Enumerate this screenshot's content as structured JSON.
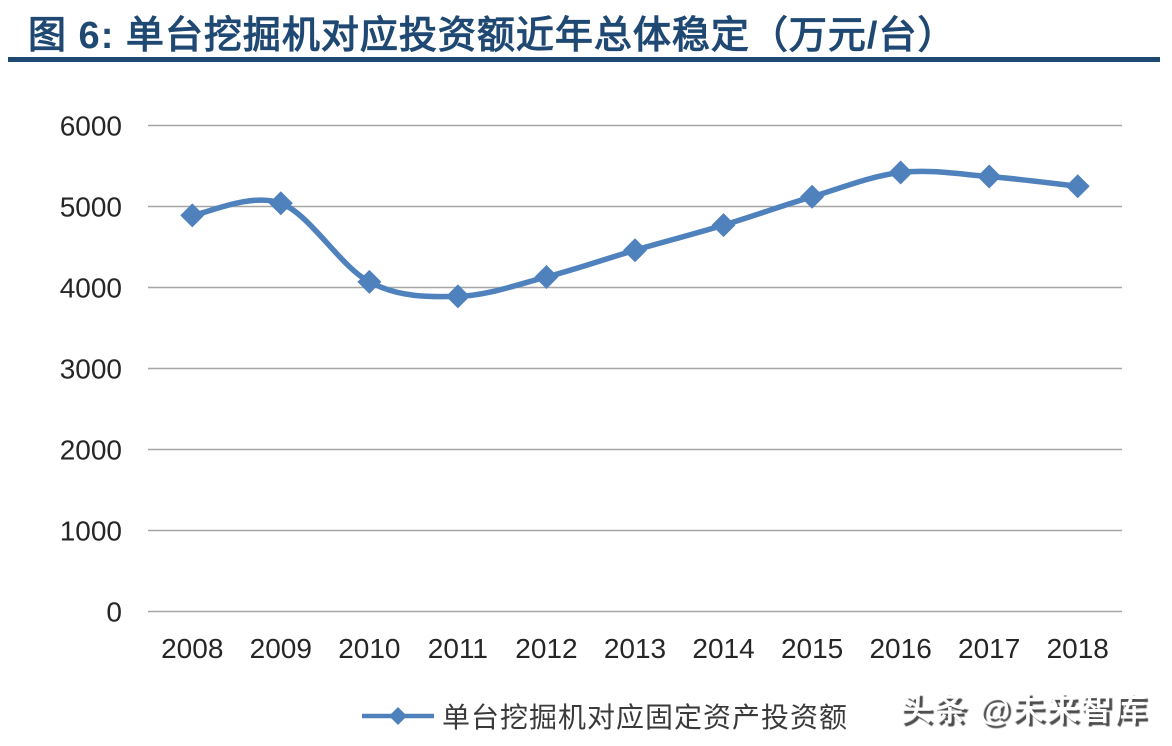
{
  "header": {
    "title": "图 6: 单台挖掘机对应投资额近年总体稳定（万元/台）",
    "accent_color": "#1f4973"
  },
  "chart_data": {
    "type": "line",
    "title": "单台挖掘机对应投资额近年总体稳定（万元/台）",
    "categories": [
      "2008",
      "2009",
      "2010",
      "2011",
      "2012",
      "2013",
      "2014",
      "2015",
      "2016",
      "2017",
      "2018"
    ],
    "series": [
      {
        "name": "单台挖掘机对应固定资产投资额",
        "values": [
          4890,
          5040,
          4070,
          3890,
          4130,
          4460,
          4770,
          5120,
          5420,
          5370,
          5250
        ]
      }
    ],
    "xlabel": "",
    "ylabel": "",
    "ylim": [
      0,
      6000
    ],
    "yticks": [
      0,
      1000,
      2000,
      3000,
      4000,
      5000,
      6000
    ],
    "grid": true,
    "smooth": true,
    "marker": "diamond",
    "legend_position": "bottom",
    "line_color": "#4f81bd",
    "gridline_color": "#a6a6a6",
    "tick_label_color": "#262626"
  },
  "watermark": {
    "text": "头条 @未来智库"
  }
}
